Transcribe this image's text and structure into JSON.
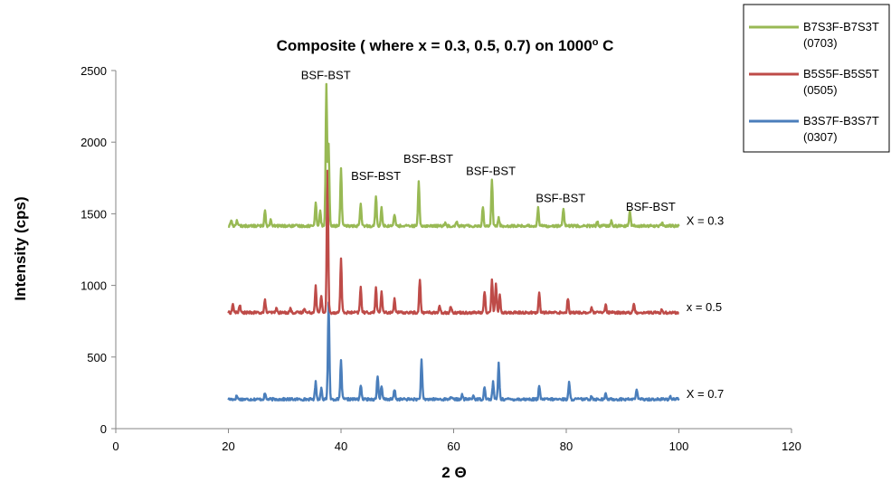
{
  "chart_data": {
    "type": "line",
    "title_main": "Composite ( where x = 0.3, 0.5, 0.7) on 1000",
    "title_sup": "o",
    "title_end": " C",
    "xlabel": "2 Θ",
    "ylabel": "Intensity (cps)",
    "xlim": [
      0,
      120
    ],
    "ylim": [
      0,
      2500
    ],
    "x_ticks": [
      0,
      20,
      40,
      60,
      80,
      100,
      120
    ],
    "y_ticks": [
      0,
      500,
      1000,
      1500,
      2000,
      2500
    ],
    "grid": false,
    "legend_position": "top-right",
    "series": [
      {
        "name_line1": "B3S7F-B3S7T",
        "name_line2": "(0307)",
        "color": "#4a7ebb",
        "baseline": 205,
        "x_range": [
          20,
          100
        ],
        "peaks": [
          [
            21.5,
            25
          ],
          [
            26.5,
            40
          ],
          [
            35.5,
            120
          ],
          [
            36.5,
            80
          ],
          [
            37.8,
            680
          ],
          [
            40,
            270
          ],
          [
            43.5,
            100
          ],
          [
            46.5,
            165
          ],
          [
            47.2,
            90
          ],
          [
            49.5,
            70
          ],
          [
            54.3,
            270
          ],
          [
            59.5,
            20
          ],
          [
            61.5,
            30
          ],
          [
            63.5,
            25
          ],
          [
            65.5,
            90
          ],
          [
            67,
            120
          ],
          [
            68,
            255
          ],
          [
            75.2,
            90
          ],
          [
            80.5,
            115
          ],
          [
            84.5,
            25
          ],
          [
            87,
            35
          ],
          [
            92.5,
            75
          ],
          [
            98.5,
            20
          ]
        ],
        "label": "X = 0.7",
        "label_at": [
          101,
          240
        ]
      },
      {
        "name_line1": "B5S5F-B5S5T",
        "name_line2": "(0505)",
        "color": "#be4b48",
        "baseline": 810,
        "x_range": [
          20,
          100
        ],
        "peaks": [
          [
            20.8,
            60
          ],
          [
            22,
            55
          ],
          [
            26.5,
            85
          ],
          [
            28.5,
            30
          ],
          [
            31,
            30
          ],
          [
            33.5,
            35
          ],
          [
            35.5,
            190
          ],
          [
            36.5,
            120
          ],
          [
            37.6,
            990
          ],
          [
            40,
            375
          ],
          [
            43.5,
            180
          ],
          [
            46.2,
            175
          ],
          [
            47.2,
            150
          ],
          [
            49.5,
            100
          ],
          [
            54,
            230
          ],
          [
            57.5,
            40
          ],
          [
            59.5,
            45
          ],
          [
            65.5,
            150
          ],
          [
            66.8,
            230
          ],
          [
            67.5,
            205
          ],
          [
            68.2,
            120
          ],
          [
            75.2,
            140
          ],
          [
            80.3,
            100
          ],
          [
            84.5,
            30
          ],
          [
            87,
            55
          ],
          [
            92,
            60
          ],
          [
            97,
            20
          ]
        ],
        "label": "x = 0.5",
        "label_at": [
          101,
          845
        ]
      },
      {
        "name_line1": "B7S3F-B7S3T",
        "name_line2": "(0703)",
        "color": "#98b954",
        "baseline": 1415,
        "x_range": [
          20,
          100
        ],
        "peaks": [
          [
            20.5,
            40
          ],
          [
            21.5,
            40
          ],
          [
            26.5,
            110
          ],
          [
            27.5,
            40
          ],
          [
            35.5,
            170
          ],
          [
            36.3,
            105
          ],
          [
            37.4,
            990
          ],
          [
            37.8,
            560
          ],
          [
            40,
            400
          ],
          [
            43.5,
            150
          ],
          [
            46.2,
            215
          ],
          [
            47.2,
            135
          ],
          [
            49.5,
            85
          ],
          [
            53.8,
            305
          ],
          [
            58.5,
            25
          ],
          [
            60.5,
            35
          ],
          [
            65.2,
            130
          ],
          [
            66.8,
            325
          ],
          [
            68,
            55
          ],
          [
            75,
            130
          ],
          [
            79.5,
            120
          ],
          [
            85.5,
            30
          ],
          [
            88,
            35
          ],
          [
            91.3,
            105
          ],
          [
            97,
            20
          ]
        ],
        "label": "X = 0.3",
        "label_at": [
          101,
          1450
        ]
      }
    ],
    "annotations": [
      {
        "text": "BSF-BST",
        "x": 37.3,
        "y": 2440
      },
      {
        "text": "BSF-BST",
        "x": 46.2,
        "y": 1735
      },
      {
        "text": "BSF-BST",
        "x": 55.5,
        "y": 1855
      },
      {
        "text": "BSF-BST",
        "x": 66.6,
        "y": 1770
      },
      {
        "text": "BSF-BST",
        "x": 79,
        "y": 1580
      },
      {
        "text": "BSF-BST",
        "x": 95,
        "y": 1520
      }
    ]
  }
}
